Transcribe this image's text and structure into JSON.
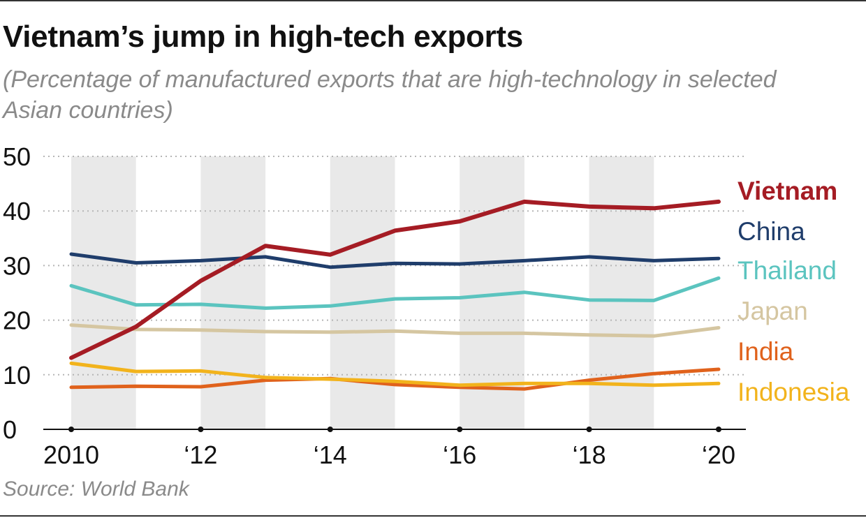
{
  "title": "Vietnam’s jump in high-tech exports",
  "subtitle": "(Percentage of manufactured exports that are high-technology in selected Asian countries)",
  "source": "Source: World Bank",
  "chart_data": {
    "type": "line",
    "title": "Vietnam’s jump in high-tech exports",
    "ylabel": "",
    "xlabel": "",
    "x": [
      2010,
      2011,
      2012,
      2013,
      2014,
      2015,
      2016,
      2017,
      2018,
      2019,
      2020
    ],
    "x_tick_values": [
      2010,
      2012,
      2014,
      2016,
      2018,
      2020
    ],
    "x_tick_labels": [
      "2010",
      "‘12",
      "‘14",
      "‘16",
      "‘18",
      "‘20"
    ],
    "ylim": [
      0,
      50
    ],
    "y_ticks": [
      0,
      10,
      20,
      30,
      40,
      50
    ],
    "grid": "horizontal dotted",
    "shaded_years": [
      2010,
      2012,
      2014,
      2016,
      2018
    ],
    "legend": "right, labels at line ends",
    "series": [
      {
        "name": "Vietnam",
        "color": "#a51c24",
        "bold": true,
        "values": [
          13.1,
          18.8,
          27.2,
          33.6,
          32.0,
          36.4,
          38.1,
          41.7,
          40.8,
          40.5,
          41.7
        ]
      },
      {
        "name": "China",
        "color": "#1f3d6b",
        "bold": false,
        "values": [
          32.1,
          30.5,
          30.9,
          31.6,
          29.7,
          30.4,
          30.3,
          30.9,
          31.6,
          30.9,
          31.3
        ]
      },
      {
        "name": "Thailand",
        "color": "#5bc4bf",
        "bold": false,
        "values": [
          26.3,
          22.8,
          22.9,
          22.2,
          22.6,
          23.9,
          24.1,
          25.1,
          23.7,
          23.6,
          27.7
        ]
      },
      {
        "name": "Japan",
        "color": "#d5c6a1",
        "bold": false,
        "values": [
          19.1,
          18.3,
          18.2,
          17.9,
          17.8,
          18.0,
          17.6,
          17.6,
          17.3,
          17.1,
          18.6
        ]
      },
      {
        "name": "India",
        "color": "#e0621c",
        "bold": false,
        "values": [
          7.7,
          7.9,
          7.8,
          9.0,
          9.3,
          8.2,
          7.7,
          7.4,
          9.0,
          10.2,
          11.0
        ]
      },
      {
        "name": "Indonesia",
        "color": "#f2b31c",
        "bold": false,
        "values": [
          12.1,
          10.6,
          10.7,
          9.5,
          9.2,
          8.8,
          8.1,
          8.4,
          8.4,
          8.1,
          8.4
        ]
      }
    ]
  }
}
